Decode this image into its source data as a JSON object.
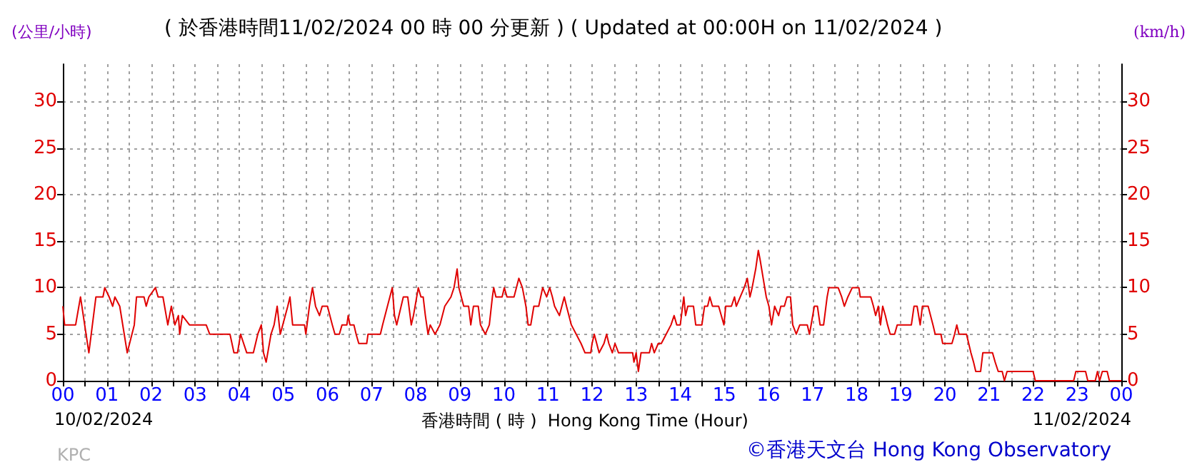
{
  "chart_data": {
    "type": "line",
    "title": "( 於香港時間11/02/2024 00 時 00 分更新 ) ( Updated at 00:00H on 11/02/2024 )",
    "xlabel": "香港時間 ( 時 )  Hong Kong Time (Hour)",
    "ylabel": "(公里/小時)",
    "y2label": "(km/h)",
    "annotations": [
      "10/02/2024",
      "11/02/2024",
      "KPC",
      "©香港天文台 Hong Kong Observatory"
    ],
    "xlim": [
      0,
      24
    ],
    "xticks": [
      {
        "value": 0,
        "label": "00"
      },
      {
        "value": 0.5,
        "label": null
      },
      {
        "value": 1,
        "label": "01"
      },
      {
        "value": 1.5,
        "label": null
      },
      {
        "value": 2,
        "label": "02"
      },
      {
        "value": 2.5,
        "label": null
      },
      {
        "value": 3,
        "label": "03"
      },
      {
        "value": 3.5,
        "label": null
      },
      {
        "value": 4,
        "label": "04"
      },
      {
        "value": 4.5,
        "label": null
      },
      {
        "value": 5,
        "label": "05"
      },
      {
        "value": 5.5,
        "label": null
      },
      {
        "value": 6,
        "label": "06"
      },
      {
        "value": 6.5,
        "label": null
      },
      {
        "value": 7,
        "label": "07"
      },
      {
        "value": 7.5,
        "label": null
      },
      {
        "value": 8,
        "label": "08"
      },
      {
        "value": 8.5,
        "label": null
      },
      {
        "value": 9,
        "label": "09"
      },
      {
        "value": 9.5,
        "label": null
      },
      {
        "value": 10,
        "label": "10"
      },
      {
        "value": 10.5,
        "label": null
      },
      {
        "value": 11,
        "label": "11"
      },
      {
        "value": 11.5,
        "label": null
      },
      {
        "value": 12,
        "label": "12"
      },
      {
        "value": 12.5,
        "label": null
      },
      {
        "value": 13,
        "label": "13"
      },
      {
        "value": 13.5,
        "label": null
      },
      {
        "value": 14,
        "label": "14"
      },
      {
        "value": 14.5,
        "label": null
      },
      {
        "value": 15,
        "label": "15"
      },
      {
        "value": 15.5,
        "label": null
      },
      {
        "value": 16,
        "label": "16"
      },
      {
        "value": 16.5,
        "label": null
      },
      {
        "value": 17,
        "label": "17"
      },
      {
        "value": 17.5,
        "label": null
      },
      {
        "value": 18,
        "label": "18"
      },
      {
        "value": 18.5,
        "label": null
      },
      {
        "value": 19,
        "label": "19"
      },
      {
        "value": 19.5,
        "label": null
      },
      {
        "value": 20,
        "label": "20"
      },
      {
        "value": 20.5,
        "label": null
      },
      {
        "value": 21,
        "label": "21"
      },
      {
        "value": 21.5,
        "label": null
      },
      {
        "value": 22,
        "label": "22"
      },
      {
        "value": 22.5,
        "label": null
      },
      {
        "value": 23,
        "label": "23"
      },
      {
        "value": 23.5,
        "label": null
      },
      {
        "value": 24,
        "label": "00"
      }
    ],
    "ylim": [
      0,
      34
    ],
    "yticks": [
      0,
      5,
      10,
      15,
      20,
      25,
      30
    ],
    "y2lim": [
      0,
      34
    ],
    "y2ticks": [
      0,
      5,
      10,
      15,
      20,
      25,
      30
    ],
    "grid": true,
    "series": [
      {
        "color": "#e00000",
        "x": [
          0,
          0.04,
          0.29,
          0.4,
          0.59,
          0.75,
          0.91,
          0.95,
          1.05,
          1.13,
          1.18,
          1.29,
          1.46,
          1.62,
          1.67,
          1.84,
          1.89,
          1.95,
          2.1,
          2.16,
          2.27,
          2.38,
          2.46,
          2.54,
          2.62,
          2.65,
          2.71,
          2.87,
          3.25,
          3.33,
          3.79,
          3.88,
          3.96,
          4.03,
          4.17,
          4.32,
          4.42,
          4.5,
          4.55,
          4.61,
          4.72,
          4.79,
          4.86,
          4.93,
          5.1,
          5.15,
          5.21,
          5.48,
          5.51,
          5.59,
          5.66,
          5.73,
          5.82,
          5.88,
          6,
          6.11,
          6.17,
          6.27,
          6.33,
          6.44,
          6.47,
          6.51,
          6.6,
          6.65,
          6.71,
          6.89,
          6.92,
          7.2,
          7.25,
          7.36,
          7.47,
          7.52,
          7.57,
          7.72,
          7.82,
          7.9,
          7.95,
          8.06,
          8.12,
          8.17,
          8.22,
          8.28,
          8.33,
          8.44,
          8.55,
          8.66,
          8.8,
          8.87,
          8.94,
          8.98,
          9.09,
          9.2,
          9.25,
          9.31,
          9.42,
          9.47,
          9.58,
          9.67,
          9.74,
          9.77,
          9.82,
          9.96,
          10.01,
          10.07,
          10.23,
          10.34,
          10.42,
          10.5,
          10.55,
          10.61,
          10.68,
          10.79,
          10.88,
          10.97,
          11.04,
          11.1,
          11.15,
          11.26,
          11.37,
          11.42,
          11.53,
          11.64,
          11.75,
          11.84,
          11.97,
          12,
          12.05,
          12.16,
          12.27,
          12.33,
          12.38,
          12.46,
          12.52,
          12.6,
          12.92,
          12.95,
          13,
          13.05,
          13.11,
          13.3,
          13.35,
          13.41,
          13.5,
          13.57,
          13.68,
          13.79,
          13.86,
          13.92,
          14,
          14.08,
          14.12,
          14.17,
          14.3,
          14.35,
          14.49,
          14.55,
          14.62,
          14.67,
          14.73,
          14.87,
          14.93,
          14.99,
          15.03,
          15.16,
          15.23,
          15.27,
          15.36,
          15.45,
          15.52,
          15.58,
          15.63,
          15.71,
          15.77,
          15.81,
          15.88,
          15.95,
          16.01,
          16.07,
          16.14,
          16.23,
          16.28,
          16.36,
          16.42,
          16.5,
          16.55,
          16.63,
          16.71,
          16.88,
          16.93,
          17.04,
          17.11,
          17.17,
          17.25,
          17.33,
          17.37,
          17.58,
          17.66,
          17.72,
          17.8,
          17.9,
          18.05,
          18.08,
          18.32,
          18.38,
          18.43,
          18.49,
          18.54,
          18.59,
          18.65,
          18.7,
          18.76,
          18.86,
          18.92,
          19.24,
          19.3,
          19.37,
          19.44,
          19.49,
          19.62,
          19.73,
          19.78,
          19.91,
          19.95,
          20.16,
          20.22,
          20.27,
          20.32,
          20.49,
          20.54,
          20.59,
          20.65,
          20.7,
          20.81,
          20.86,
          21.08,
          21.14,
          21.21,
          21.3,
          21.35,
          21.41,
          22,
          22.05,
          22.92,
          22.97,
          23.19,
          23.24,
          23.41,
          23.46,
          23.51,
          23.57,
          23.68,
          23.73,
          24
        ],
        "values": [
          8,
          6,
          6,
          9,
          3,
          9,
          9,
          10,
          9,
          8,
          9,
          8,
          3,
          6,
          9,
          9,
          8,
          9,
          10,
          9,
          9,
          6,
          8,
          6,
          7,
          5,
          7,
          6,
          6,
          5,
          5,
          3,
          3,
          5,
          3,
          3,
          5,
          6,
          3,
          2,
          5,
          6,
          8,
          5,
          8,
          9,
          6,
          6,
          5,
          8,
          10,
          8,
          7,
          8,
          8,
          6,
          5,
          5,
          6,
          6,
          7,
          6,
          6,
          5,
          4,
          4,
          5,
          5,
          6,
          8,
          10,
          7,
          6,
          9,
          9,
          6,
          7,
          10,
          9,
          9,
          7,
          5,
          6,
          5,
          6,
          8,
          9,
          10,
          12,
          10,
          8,
          8,
          6,
          8,
          8,
          6,
          5,
          6,
          9,
          10,
          9,
          9,
          10,
          9,
          9,
          11,
          10,
          8,
          6,
          6,
          8,
          8,
          10,
          9,
          10,
          9,
          8,
          7,
          9,
          8,
          6,
          5,
          4,
          3,
          3,
          4,
          5,
          3,
          4,
          5,
          4,
          3,
          4,
          3,
          3,
          2,
          3,
          1,
          3,
          3,
          4,
          3,
          4,
          4,
          5,
          6,
          7,
          6,
          6,
          9,
          7,
          8,
          8,
          6,
          6,
          8,
          8,
          9,
          8,
          8,
          7,
          6,
          8,
          8,
          9,
          8,
          9,
          10,
          11,
          9,
          10,
          12,
          14,
          13,
          11,
          9,
          8,
          6,
          8,
          7,
          8,
          8,
          9,
          9,
          6,
          5,
          6,
          6,
          5,
          8,
          8,
          6,
          6,
          9,
          10,
          10,
          9,
          8,
          9,
          10,
          10,
          9,
          9,
          8,
          7,
          8,
          6,
          8,
          7,
          6,
          5,
          5,
          6,
          6,
          8,
          8,
          6,
          8,
          8,
          6,
          5,
          5,
          4,
          4,
          5,
          6,
          5,
          5,
          4,
          3,
          2,
          1,
          1,
          3,
          3,
          2,
          1,
          1,
          0,
          1,
          1,
          0,
          0,
          1,
          1,
          0,
          0,
          1,
          0,
          1,
          1,
          0,
          0
        ]
      }
    ]
  }
}
